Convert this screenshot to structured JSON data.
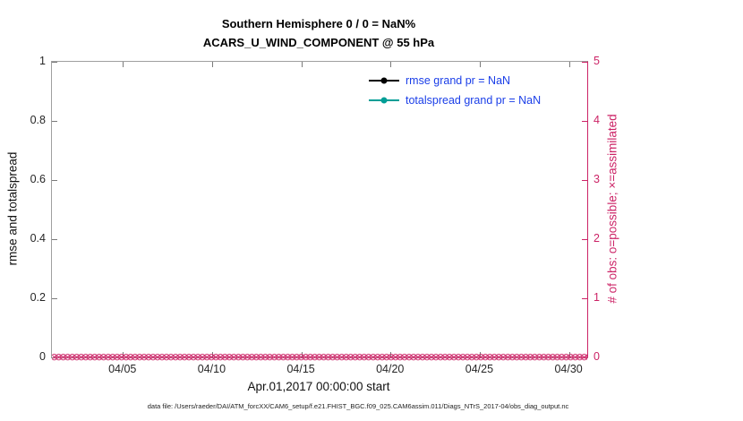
{
  "title_line1": "Southern Hemisphere 0 / 0 = NaN%",
  "title_line2": "ACARS_U_WIND_COMPONENT @ 55 hPa",
  "colors": {
    "magenta": "#cc2366",
    "teal": "#009e96",
    "legendText": "#1a3ee8"
  },
  "left_axis": {
    "label": "rmse and totalspread",
    "ticks": [
      "0",
      "0.2",
      "0.4",
      "0.6",
      "0.8",
      "1"
    ],
    "range": [
      0,
      1
    ]
  },
  "right_axis": {
    "label": "# of obs: o=possible; ×=assimilated",
    "ticks": [
      "0",
      "1",
      "2",
      "3",
      "4",
      "5"
    ],
    "range": [
      0,
      5
    ]
  },
  "x_axis": {
    "label": "Apr.01,2017 00:00:00 start",
    "ticks": [
      "04/05",
      "04/10",
      "04/15",
      "04/20",
      "04/25",
      "04/30"
    ],
    "tick_positions": [
      0.1333,
      0.3,
      0.4667,
      0.6333,
      0.8,
      0.9667
    ]
  },
  "legend": [
    {
      "label": "rmse grand pr = NaN",
      "color": "#000000"
    },
    {
      "label": "totalspread grand pr = NaN",
      "color": "#009e96"
    }
  ],
  "footer": "data file: /Users/raeder/DAI/ATM_forcXX/CAM6_setup/f.e21.FHIST_BGC.f09_025.CAM6assim.011/Diags_NTrS_2017-04/obs_diag_output.nc",
  "chart_data": {
    "type": "line",
    "title": "Southern Hemisphere 0 / 0 = NaN% — ACARS_U_WIND_COMPONENT @ 55 hPa",
    "xlabel": "Apr.01,2017 00:00:00 start",
    "ylabel": "rmse and totalspread",
    "ylabel_right": "# of obs: o=possible; ×=assimilated",
    "x_range": [
      "04/01/2017",
      "05/01/2017"
    ],
    "x_ticks": [
      "04/05",
      "04/10",
      "04/15",
      "04/20",
      "04/25",
      "04/30"
    ],
    "ylim": [
      0,
      1
    ],
    "ylim_right": [
      0,
      5
    ],
    "grid": false,
    "legend_position": "top-center-inside",
    "series": [
      {
        "name": "rmse grand pr = NaN",
        "axis": "left",
        "values": null,
        "note": "all NaN - no line drawn"
      },
      {
        "name": "totalspread grand pr = NaN",
        "axis": "left",
        "values": null,
        "note": "all NaN - no line drawn"
      },
      {
        "name": "# of obs possible (o)",
        "axis": "right",
        "constant_value": 0
      },
      {
        "name": "# of obs assimilated (×)",
        "axis": "right",
        "constant_value": 0
      }
    ],
    "observation_marker_y": 0,
    "marker_glyph": "⊗",
    "marker_count": 120
  }
}
